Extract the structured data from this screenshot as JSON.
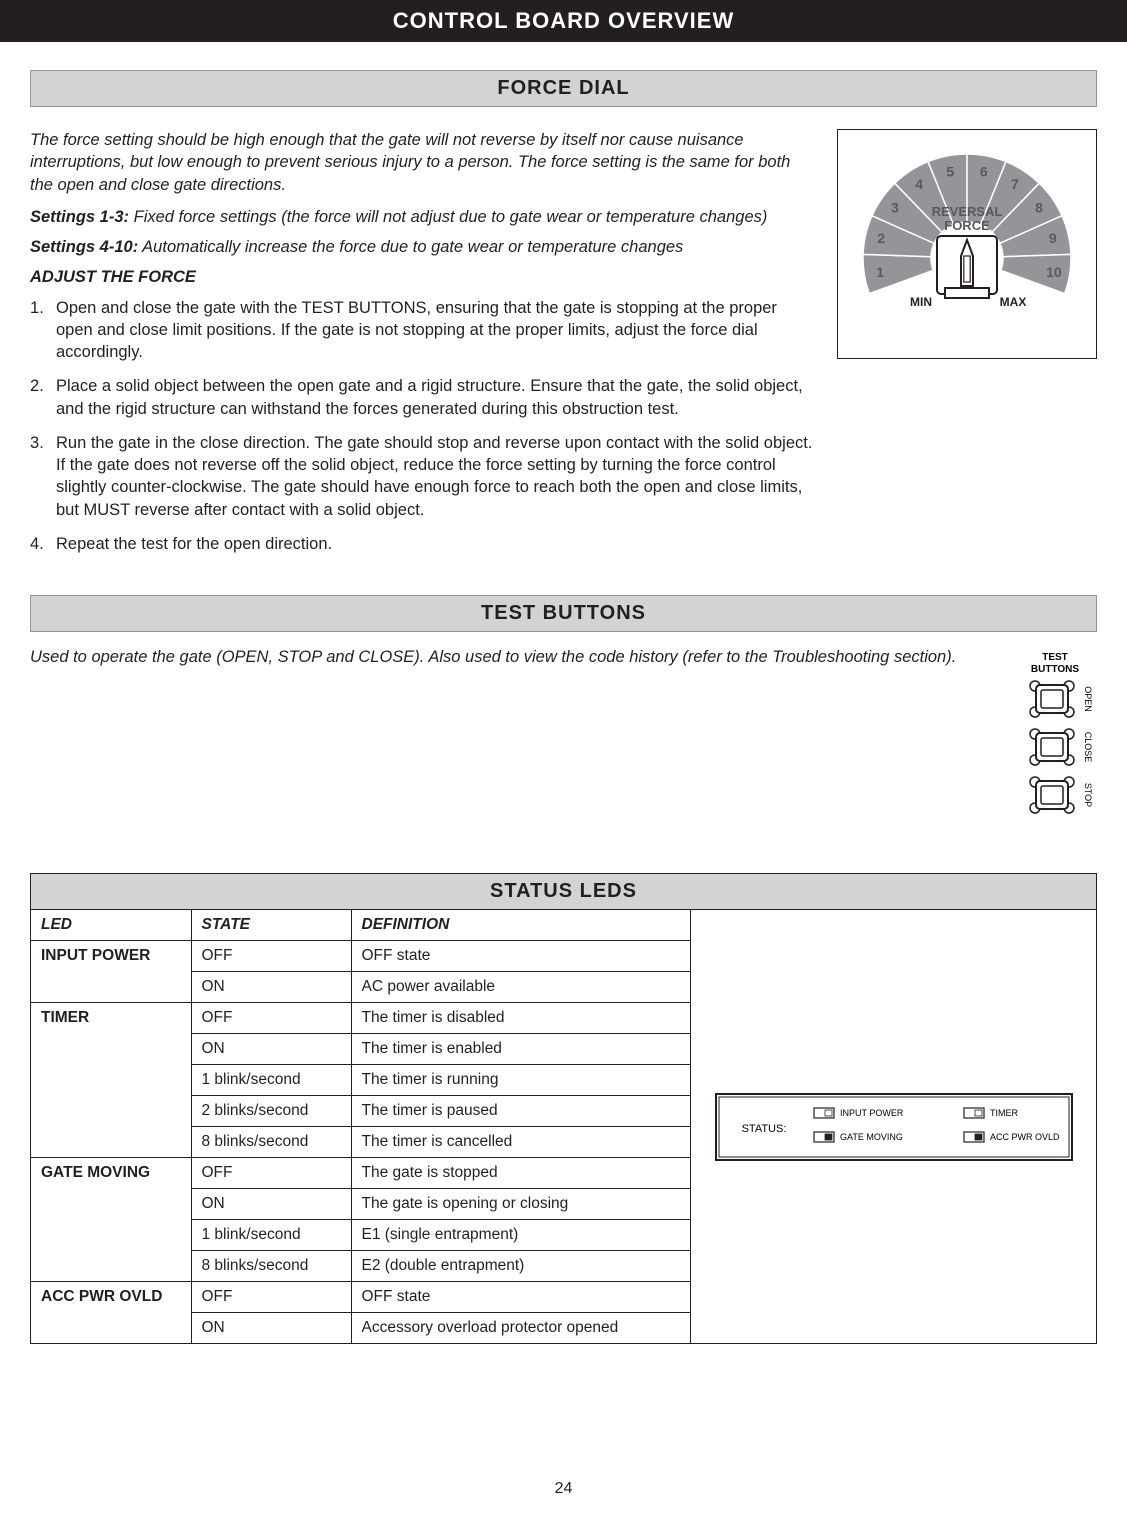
{
  "page_title": "CONTROL BOARD OVERVIEW",
  "page_number": "24",
  "force": {
    "section_title": "FORCE DIAL",
    "intro": "The force setting should be high enough that the gate will not reverse by itself nor cause nuisance interruptions, but low enough to prevent serious injury to a person. The force setting is the same for both the open and close gate directions.",
    "settings_1_label": "Settings 1-3:",
    "settings_1_desc": " Fixed force settings (the force will not adjust due to gate wear or temperature changes)",
    "settings_2_label": "Settings 4-10:",
    "settings_2_desc": " Automatically increase the force due to gate wear or temperature changes",
    "adjust_heading": "ADJUST THE FORCE",
    "steps": [
      "Open and close the gate with the TEST BUTTONS, ensuring that the gate is stopping at the proper open and close limit positions. If the gate is not stopping at the proper limits, adjust the force dial accordingly.",
      "Place a solid object between the open gate and a rigid structure. Ensure that the gate, the solid object, and the rigid structure can withstand the forces generated during this obstruction test.",
      "Run the gate in the close direction. The gate should stop and reverse upon contact with the solid object. If the gate does not reverse off the solid object, reduce the force setting by turning the force control slightly counter-clockwise. The gate should have enough force to reach both the open and close limits, but MUST reverse after contact with a solid object.",
      "Repeat the test for the open direction."
    ],
    "dial": {
      "center_line1": "REVERSAL",
      "center_line2": "FORCE",
      "min_label": "MIN",
      "max_label": "MAX",
      "labels": [
        "1",
        "2",
        "3",
        "4",
        "5",
        "6",
        "7",
        "8",
        "9",
        "10"
      ],
      "segment_color": "#939598",
      "segment_alt_color": "#a7a9ac",
      "label_color": "#58595b",
      "border_color": "#231f20",
      "bg_color": "#ffffff"
    }
  },
  "test": {
    "section_title": "TEST BUTTONS",
    "text": "Used to operate the gate (OPEN, STOP and CLOSE). Also used to view the code history (refer to the Troubleshooting section).",
    "figure": {
      "title": "TEST",
      "subtitle": "BUTTONS",
      "labels": [
        "OPEN",
        "CLOSE",
        "STOP"
      ]
    }
  },
  "status": {
    "section_title": "STATUS LEDS",
    "headers": {
      "led": "LED",
      "state": "STATE",
      "def": "DEFINITION"
    },
    "groups": [
      {
        "led": "INPUT POWER",
        "rows": [
          {
            "state": "OFF",
            "def": "OFF state"
          },
          {
            "state": "ON",
            "def": "AC power available"
          }
        ]
      },
      {
        "led": "TIMER",
        "rows": [
          {
            "state": "OFF",
            "def": "The timer is disabled"
          },
          {
            "state": "ON",
            "def": "The timer is enabled"
          },
          {
            "state": "1 blink/second",
            "def": "The timer is running"
          },
          {
            "state": "2 blinks/second",
            "def": "The timer is paused"
          },
          {
            "state": "8 blinks/second",
            "def": "The timer is cancelled"
          }
        ]
      },
      {
        "led": "GATE MOVING",
        "rows": [
          {
            "state": "OFF",
            "def": "The gate is stopped"
          },
          {
            "state": "ON",
            "def": "The gate is opening or closing"
          },
          {
            "state": "1 blink/second",
            "def": "E1 (single entrapment)"
          },
          {
            "state": "8 blinks/second",
            "def": "E2 (double entrapment)"
          }
        ]
      },
      {
        "led": "ACC PWR OVLD",
        "rows": [
          {
            "state": "OFF",
            "def": "OFF state"
          },
          {
            "state": "ON",
            "def": "Accessory overload protector opened"
          }
        ]
      }
    ],
    "figure": {
      "status_label": "STATUS:",
      "leds": [
        "INPUT POWER",
        "TIMER",
        "GATE MOVING",
        "ACC PWR OVLD"
      ]
    }
  },
  "colors": {
    "header_bg": "#231f20",
    "bar_bg": "#d1d3d4",
    "border": "#231f20",
    "text": "#231f20"
  }
}
